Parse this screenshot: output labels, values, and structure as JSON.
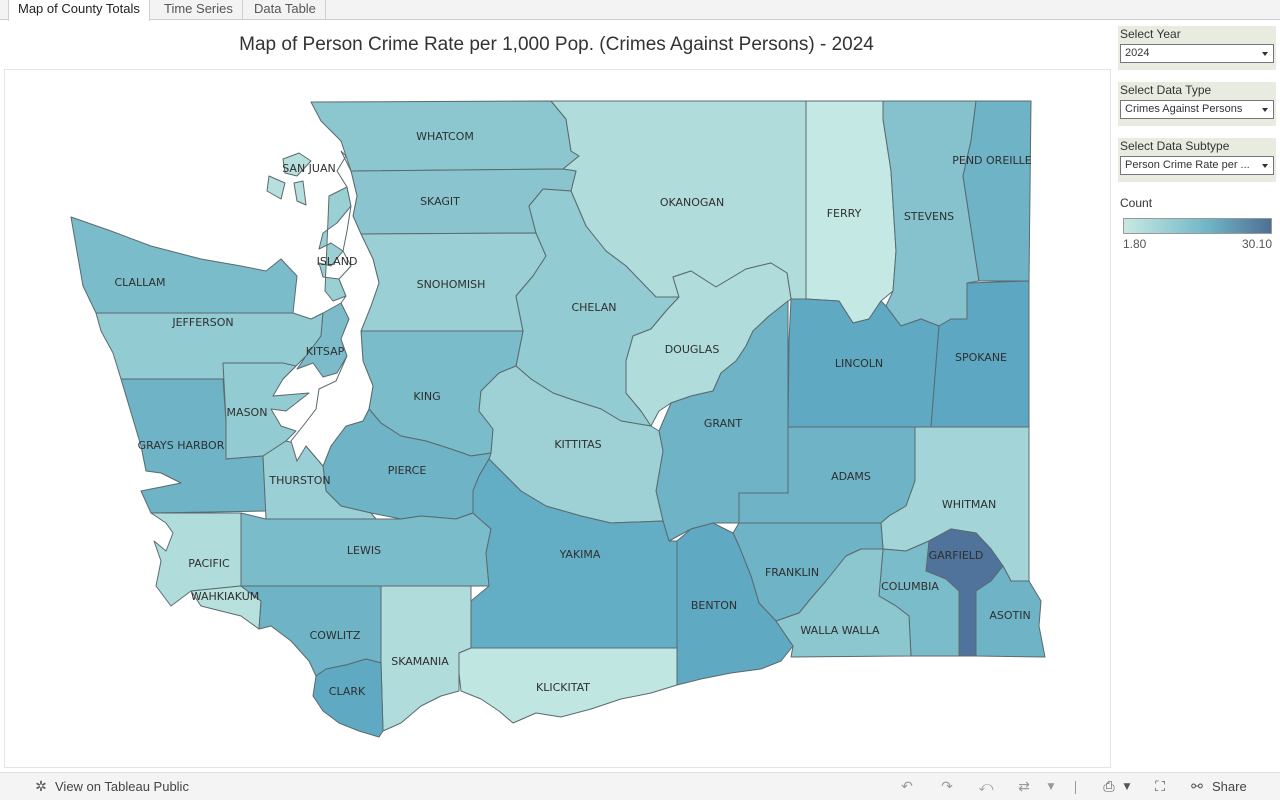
{
  "tabs": [
    "Map of County Totals",
    "Time Series",
    "Data Table"
  ],
  "title": "Map of Person Crime Rate per 1,000 Pop. (Crimes Against Persons) - 2024",
  "filters": [
    {
      "label": "Select Year",
      "value": "2024"
    },
    {
      "label": "Select Data Type",
      "value": "Crimes Against Persons"
    },
    {
      "label": "Select Data Subtype",
      "value": "Person Crime Rate per ..."
    }
  ],
  "legend": {
    "title": "Count",
    "min": "1.80",
    "max": "30.10",
    "color_low": "#c8e8e1",
    "color_high": "#4f6f94"
  },
  "counties": {
    "whatcom": "WHATCOM",
    "san_juan": "SAN JUAN",
    "skagit": "SKAGIT",
    "okanogan": "OKANOGAN",
    "ferry": "FERRY",
    "stevens": "STEVENS",
    "pend_oreille": "PEND OREILLE",
    "island": "ISLAND",
    "clallam": "CLALLAM",
    "snohomish": "SNOHOMISH",
    "chelan": "CHELAN",
    "jefferson": "JEFFERSON",
    "douglas": "DOUGLAS",
    "lincoln": "LINCOLN",
    "spokane": "SPOKANE",
    "kitsap": "KITSAP",
    "mason": "MASON",
    "king": "KING",
    "grant": "GRANT",
    "kittitas": "KITTITAS",
    "grays_harbor": "GRAYS HARBOR",
    "pierce": "PIERCE",
    "adams": "ADAMS",
    "thurston": "THURSTON",
    "whitman": "WHITMAN",
    "lewis": "LEWIS",
    "yakima": "YAKIMA",
    "pacific": "PACIFIC",
    "garfield": "GARFIELD",
    "franklin": "FRANKLIN",
    "wahkiakum": "WAHKIAKUM",
    "columbia": "COLUMBIA",
    "benton": "BENTON",
    "asotin": "ASOTIN",
    "cowlitz": "COWLITZ",
    "walla_walla": "WALLA WALLA",
    "skamania": "SKAMANIA",
    "clark": "CLARK",
    "klickitat": "KLICKITAT"
  },
  "toolbar": {
    "view_label": "View on Tableau Public",
    "share_label": "Share"
  }
}
